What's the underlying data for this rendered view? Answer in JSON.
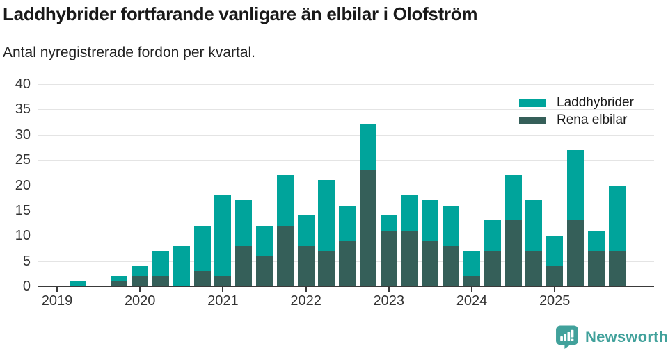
{
  "header": {
    "title": "Laddhybrider fortfarande vanligare än elbilar i Olofström",
    "subtitle": "Antal nyregistrerade fordon per kvartal."
  },
  "legend": {
    "items": [
      {
        "label": "Laddhybrider",
        "color": "#00a49b"
      },
      {
        "label": "Rena elbilar",
        "color": "#355f59"
      }
    ]
  },
  "footer": {
    "brand": "Newsworthy",
    "brand_color": "#41a19b"
  },
  "chart_data": {
    "type": "bar",
    "stacked": true,
    "title": "Laddhybrider fortfarande vanligare än elbilar i Olofström",
    "subtitle": "Antal nyregistrerade fordon per kvartal.",
    "categories": [
      "2019 K1",
      "2019 K2",
      "2019 K3",
      "2019 K4",
      "2020 K1",
      "2020 K2",
      "2020 K3",
      "2020 K4",
      "2021 K1",
      "2021 K2",
      "2021 K3",
      "2021 K4",
      "2022 K1",
      "2022 K2",
      "2022 K3",
      "2022 K4",
      "2023 K1",
      "2023 K2",
      "2023 K3",
      "2023 K4",
      "2024 K1",
      "2024 K2",
      "2024 K3",
      "2024 K4",
      "2025 K1",
      "2025 K2",
      "2025 K3",
      "2025 K4"
    ],
    "series": [
      {
        "name": "Laddhybrider",
        "color": "#00a49b",
        "stack_index": 1,
        "values": [
          0,
          1,
          0,
          1,
          2,
          5,
          8,
          9,
          16,
          9,
          6,
          10,
          6,
          14,
          7,
          9,
          3,
          7,
          8,
          8,
          5,
          6,
          9,
          10,
          6,
          14,
          4,
          13
        ]
      },
      {
        "name": "Rena elbilar",
        "color": "#355f59",
        "stack_index": 0,
        "values": [
          0,
          0,
          0,
          1,
          2,
          2,
          0,
          3,
          2,
          8,
          6,
          12,
          8,
          7,
          9,
          23,
          11,
          11,
          9,
          8,
          2,
          7,
          13,
          7,
          4,
          13,
          7,
          7
        ]
      }
    ],
    "totals": [
      0,
      1,
      0,
      2,
      4,
      7,
      8,
      12,
      18,
      17,
      12,
      22,
      14,
      21,
      16,
      32,
      14,
      18,
      17,
      16,
      7,
      13,
      22,
      17,
      10,
      27,
      11,
      20
    ],
    "x_tick_labels": [
      "2019",
      "2020",
      "2021",
      "2022",
      "2023",
      "2024",
      "2025"
    ],
    "yticks": [
      0,
      5,
      10,
      15,
      20,
      25,
      30,
      35,
      40
    ],
    "ylim": [
      0,
      40
    ],
    "xlabel": "",
    "ylabel": "",
    "grid": true,
    "legend_position": "top-right"
  }
}
